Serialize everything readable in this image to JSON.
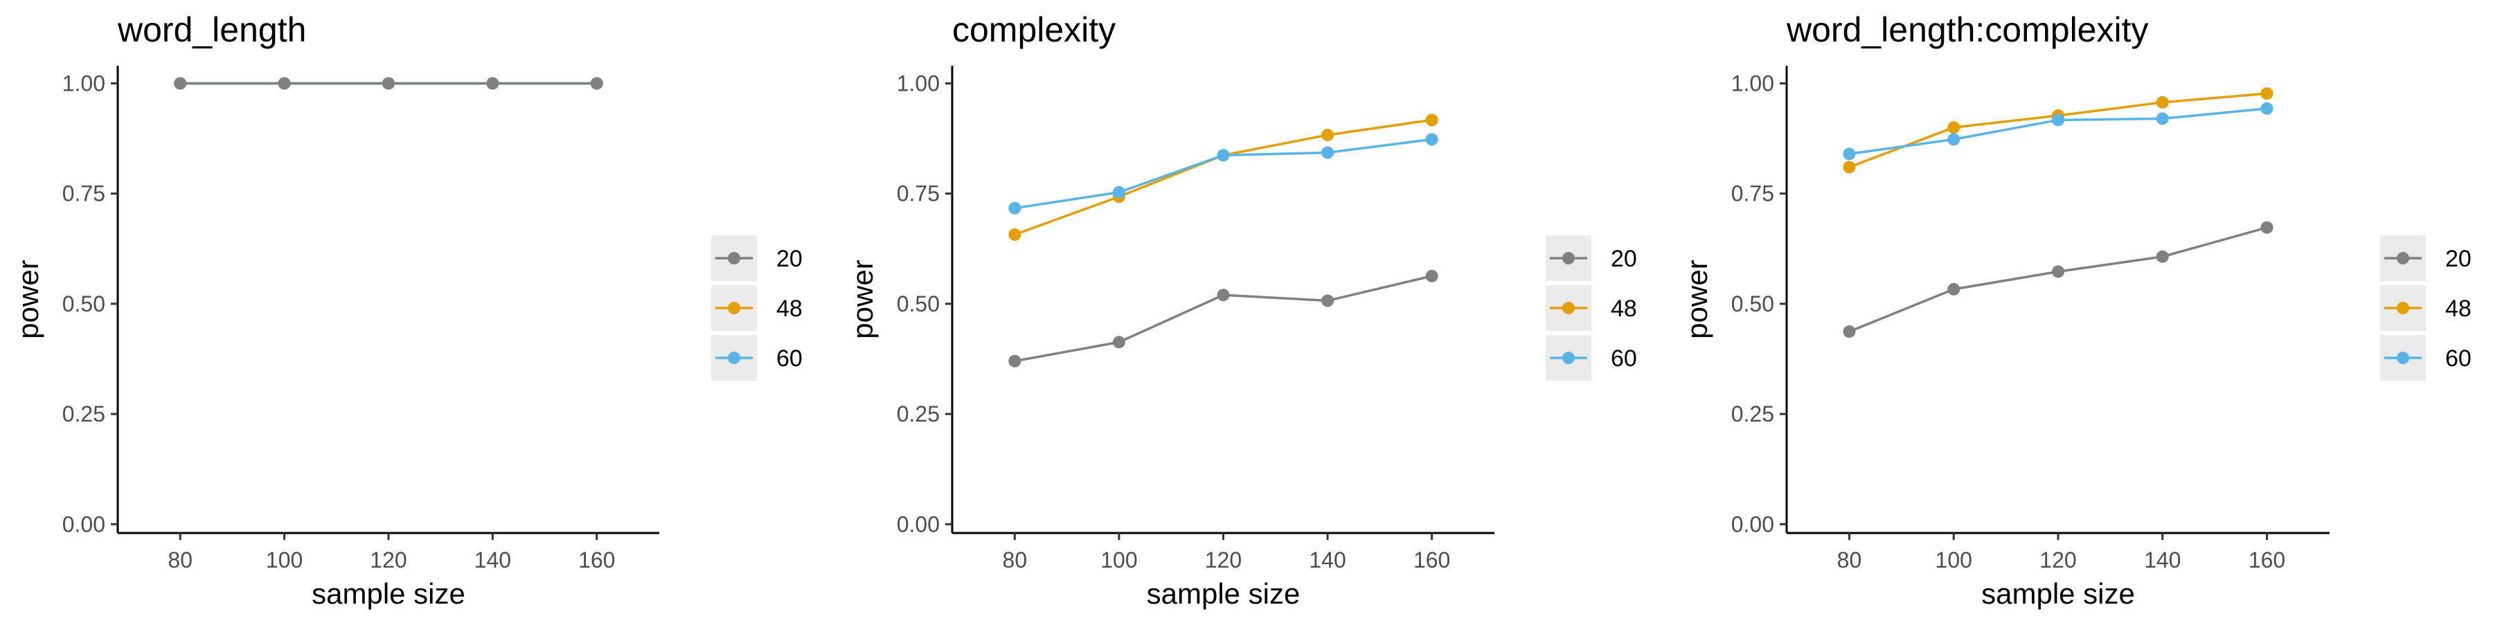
{
  "colors": {
    "20": "#808080",
    "48": "#E69F00",
    "60": "#56B4E9",
    "legend_key_bg": "#ebebeb",
    "axis": "#000000"
  },
  "chart_data": [
    {
      "type": "line",
      "title": "word_length",
      "xlabel": "sample size",
      "ylabel": "power",
      "x": [
        80,
        100,
        120,
        140,
        160
      ],
      "x_ticks": [
        "80",
        "100",
        "120",
        "140",
        "160"
      ],
      "y_ticks": [
        "0.00",
        "0.25",
        "0.50",
        "0.75",
        "1.00"
      ],
      "xlim": [
        68,
        172
      ],
      "ylim": [
        -0.02,
        1.04
      ],
      "grid": false,
      "legend_position": "right",
      "series": [
        {
          "name": "20",
          "values": [
            1.0,
            1.0,
            1.0,
            1.0,
            1.0
          ]
        },
        {
          "name": "48",
          "values": [
            1.0,
            1.0,
            1.0,
            1.0,
            1.0
          ]
        },
        {
          "name": "60",
          "values": [
            1.0,
            1.0,
            1.0,
            1.0,
            1.0
          ]
        }
      ]
    },
    {
      "type": "line",
      "title": "complexity",
      "xlabel": "sample size",
      "ylabel": "power",
      "x": [
        80,
        100,
        120,
        140,
        160
      ],
      "x_ticks": [
        "80",
        "100",
        "120",
        "140",
        "160"
      ],
      "y_ticks": [
        "0.00",
        "0.25",
        "0.50",
        "0.75",
        "1.00"
      ],
      "xlim": [
        68,
        172
      ],
      "ylim": [
        -0.02,
        1.04
      ],
      "grid": false,
      "legend_position": "right",
      "series": [
        {
          "name": "20",
          "values": [
            0.37,
            0.413,
            0.52,
            0.507,
            0.563
          ]
        },
        {
          "name": "48",
          "values": [
            0.657,
            0.743,
            0.837,
            0.883,
            0.917
          ]
        },
        {
          "name": "60",
          "values": [
            0.717,
            0.753,
            0.837,
            0.843,
            0.873
          ]
        }
      ]
    },
    {
      "type": "line",
      "title": "word_length:complexity",
      "xlabel": "sample size",
      "ylabel": "power",
      "x": [
        80,
        100,
        120,
        140,
        160
      ],
      "x_ticks": [
        "80",
        "100",
        "120",
        "140",
        "160"
      ],
      "y_ticks": [
        "0.00",
        "0.25",
        "0.50",
        "0.75",
        "1.00"
      ],
      "xlim": [
        68,
        172
      ],
      "ylim": [
        -0.02,
        1.04
      ],
      "grid": false,
      "legend_position": "right",
      "series": [
        {
          "name": "20",
          "values": [
            0.437,
            0.533,
            0.573,
            0.607,
            0.673
          ]
        },
        {
          "name": "48",
          "values": [
            0.81,
            0.9,
            0.927,
            0.957,
            0.977
          ]
        },
        {
          "name": "60",
          "values": [
            0.84,
            0.873,
            0.917,
            0.92,
            0.943
          ]
        }
      ]
    }
  ]
}
